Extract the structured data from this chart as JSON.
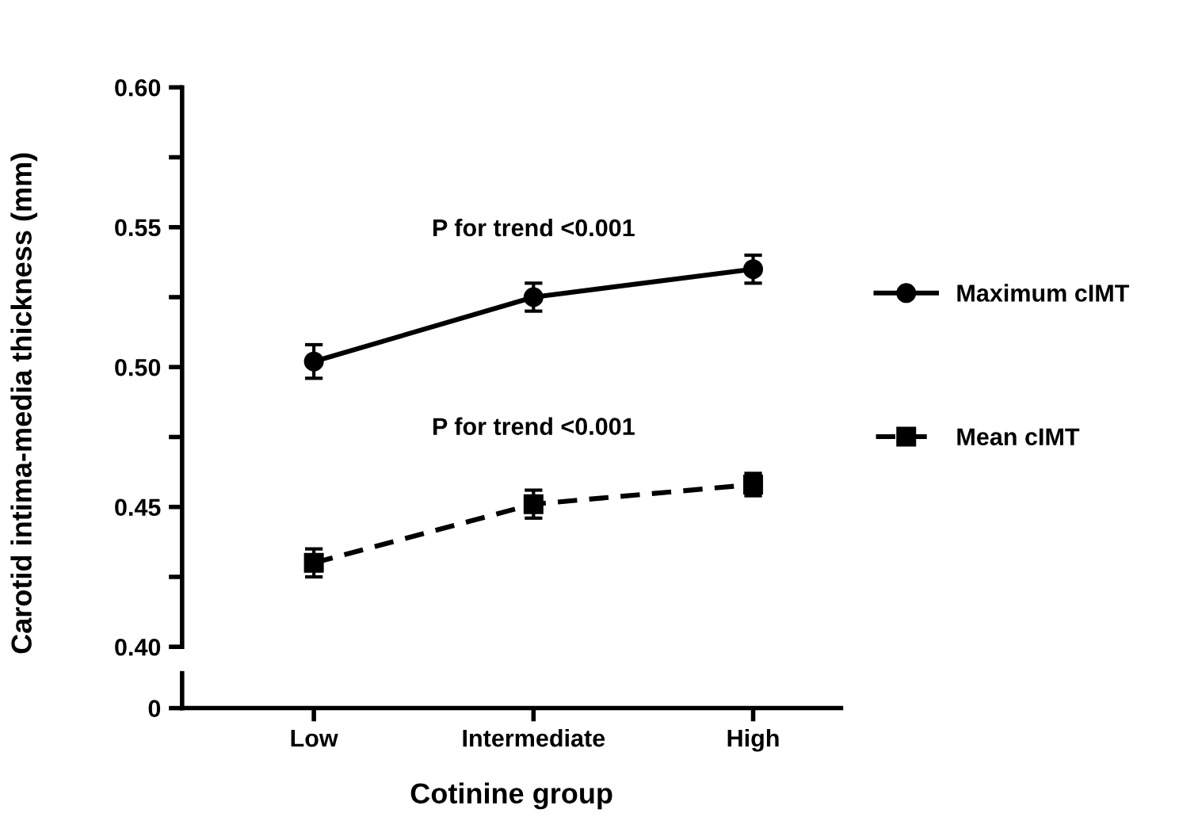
{
  "chart_data": {
    "type": "line",
    "categories": [
      "Low",
      "Intermediate",
      "High"
    ],
    "xlabel": "Cotinine group",
    "ylabel": "Carotid intima-media thickness (mm)",
    "ylim": [
      0.4,
      0.6
    ],
    "yticks": [
      {
        "value": 0.4,
        "label": "0.40"
      },
      {
        "value": 0.45,
        "label": "0.45"
      },
      {
        "value": 0.5,
        "label": "0.50"
      },
      {
        "value": 0.55,
        "label": "0.55"
      },
      {
        "value": 0.6,
        "label": "0.60"
      }
    ],
    "legend": "right",
    "series": [
      {
        "name": "Maximum cIMT",
        "color": "#000000",
        "marker": "circle",
        "line_style": "solid",
        "values": [
          0.502,
          0.525,
          0.535
        ],
        "errors": [
          0.006,
          0.005,
          0.005
        ]
      },
      {
        "name": "Mean cIMT",
        "color": "#000000",
        "marker": "square",
        "line_style": "dashed",
        "values": [
          0.43,
          0.451,
          0.458
        ],
        "errors": [
          0.005,
          0.005,
          0.004
        ]
      }
    ],
    "annotations": [
      "P for trend <0.001",
      "P for trend <0.001",
      "0"
    ]
  }
}
